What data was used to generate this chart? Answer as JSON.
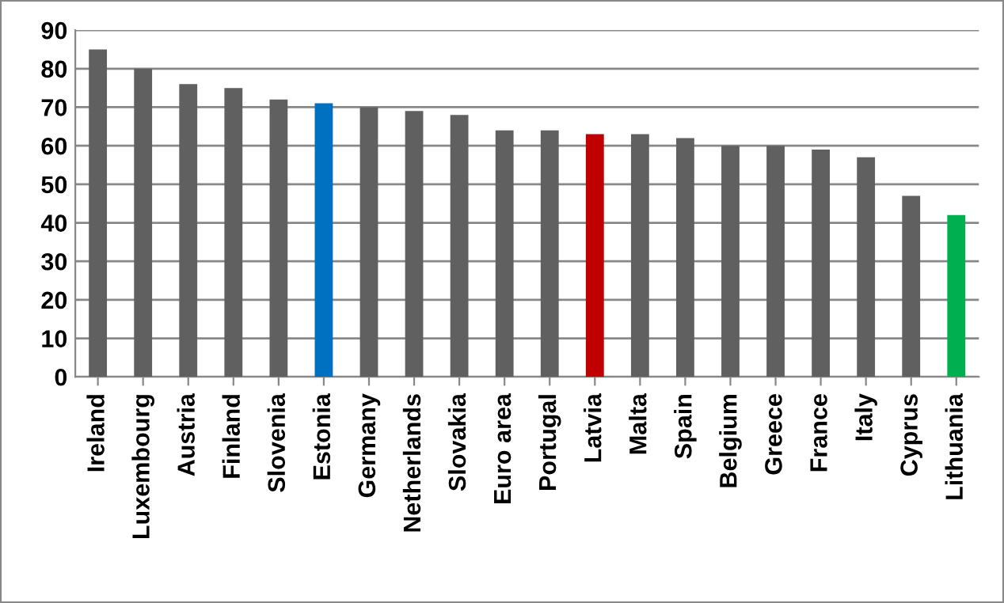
{
  "chart_data": {
    "type": "bar",
    "categories": [
      "Ireland",
      "Luxembourg",
      "Austria",
      "Finland",
      "Slovenia",
      "Estonia",
      "Germany",
      "Netherlands",
      "Slovakia",
      "Euro area",
      "Portugal",
      "Latvia",
      "Malta",
      "Spain",
      "Belgium",
      "Greece",
      "France",
      "Italy",
      "Cyprus",
      "Lithuania"
    ],
    "values": [
      85,
      80,
      76,
      75,
      72,
      71,
      70,
      69,
      68,
      64,
      64,
      63,
      63,
      62,
      60,
      60,
      59,
      57,
      47,
      42
    ],
    "colors": [
      "#606060",
      "#606060",
      "#606060",
      "#606060",
      "#606060",
      "#0070c0",
      "#606060",
      "#606060",
      "#606060",
      "#606060",
      "#606060",
      "#c00000",
      "#606060",
      "#606060",
      "#606060",
      "#606060",
      "#606060",
      "#606060",
      "#606060",
      "#00b050"
    ],
    "ylim": [
      0,
      90
    ],
    "yticks": [
      0,
      10,
      20,
      30,
      40,
      50,
      60,
      70,
      80,
      90
    ],
    "grid": "y"
  }
}
